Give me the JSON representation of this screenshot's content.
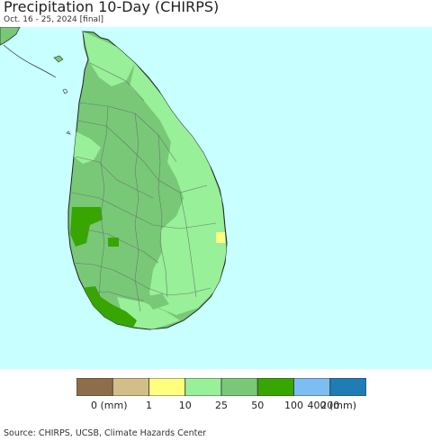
{
  "title": "Precipitation 10-Day (CHIRPS)",
  "subtitle": "Oct. 16 - 25, 2024 [final]",
  "source": "Source: CHIRPS, UCSB, Climate Hazards Center",
  "colors": {
    "ocean": "#c8ffff",
    "land_base": "#78c878",
    "land_light": "#98f098",
    "land_dark": "#37a601",
    "yellow": "#ffff7f",
    "boundary": "#6a7a6a"
  },
  "legend": {
    "unit_label": "(mm)",
    "labels": [
      "0 (mm)",
      "1",
      "10",
      "25",
      "50",
      "100",
      "200",
      "400 (mm)"
    ],
    "bins": [
      {
        "color": "#8c6e4a"
      },
      {
        "color": "#d2be86"
      },
      {
        "color": "#ffff7f"
      },
      {
        "color": "#98f098"
      },
      {
        "color": "#78c878"
      },
      {
        "color": "#37a601"
      },
      {
        "color": "#7dbef2"
      },
      {
        "color": "#1e7db4"
      }
    ]
  }
}
